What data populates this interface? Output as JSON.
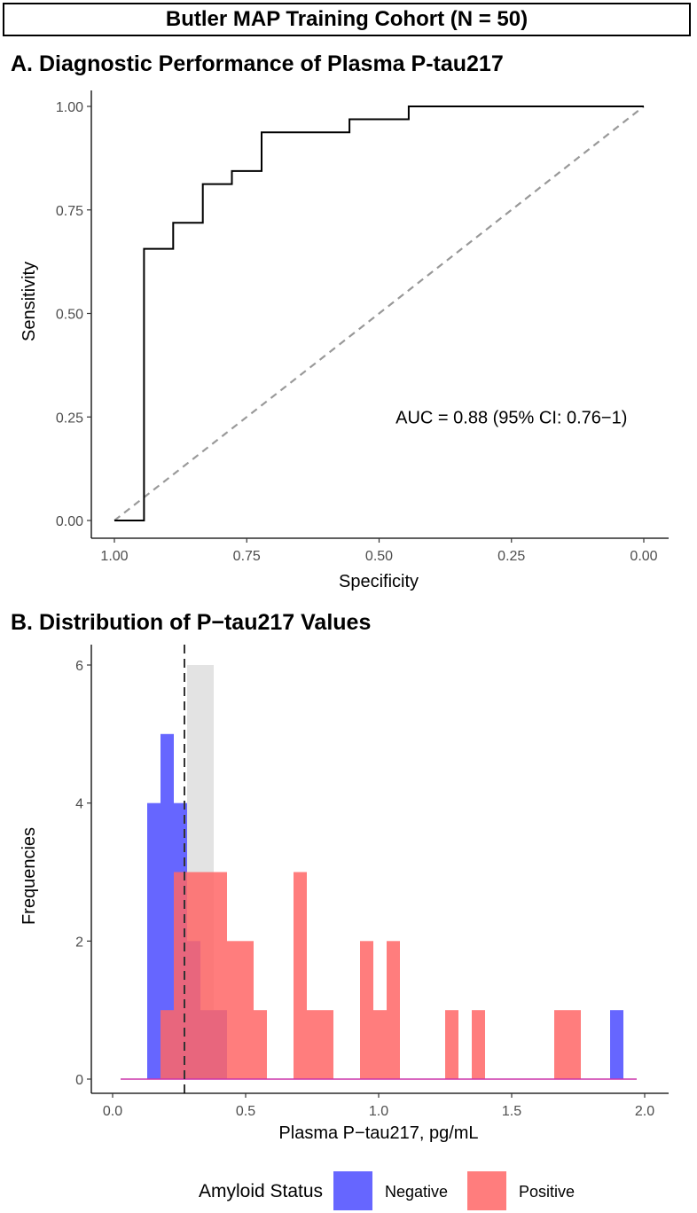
{
  "figure_title": "Butler MAP Training Cohort (N = 50)",
  "colors": {
    "negative": "#6666ff",
    "positive": "#ff6666",
    "overlap_gray": "#d9d9d9",
    "reference": "#999999",
    "roc_line": "#000000"
  },
  "chart_data": [
    {
      "type": "line",
      "panel": "A",
      "title": "A. Diagnostic Performance of Plasma P-tau217",
      "xlabel": "Specificity",
      "ylabel": "Sensitivity",
      "xlim": [
        1.0,
        0.0
      ],
      "x_reversed": true,
      "ylim": [
        0.0,
        1.0
      ],
      "x_ticks": [
        1.0,
        0.75,
        0.5,
        0.25,
        0.0
      ],
      "x_tick_labels": [
        "1.00",
        "0.75",
        "0.50",
        "0.25",
        "0.00"
      ],
      "y_ticks": [
        0.0,
        0.25,
        0.5,
        0.75,
        1.0
      ],
      "y_tick_labels": [
        "0.00",
        "0.25",
        "0.50",
        "0.75",
        "1.00"
      ],
      "grid": false,
      "series": [
        {
          "name": "ROC",
          "style": "step",
          "points": [
            [
              1.0,
              0.0
            ],
            [
              0.944,
              0.0
            ],
            [
              0.944,
              0.656
            ],
            [
              0.889,
              0.656
            ],
            [
              0.889,
              0.719
            ],
            [
              0.833,
              0.719
            ],
            [
              0.833,
              0.8125
            ],
            [
              0.778,
              0.8125
            ],
            [
              0.778,
              0.844
            ],
            [
              0.722,
              0.844
            ],
            [
              0.722,
              0.9375
            ],
            [
              0.556,
              0.9375
            ],
            [
              0.556,
              0.969
            ],
            [
              0.444,
              0.969
            ],
            [
              0.444,
              1.0
            ],
            [
              0.0,
              1.0
            ]
          ]
        },
        {
          "name": "Chance",
          "style": "dashed",
          "points": [
            [
              1.0,
              0.0
            ],
            [
              0.0,
              1.0
            ]
          ]
        }
      ],
      "annotation": "AUC = 0.88 (95% CI: 0.76−1)",
      "annotation_position": [
        0.25,
        0.25
      ]
    },
    {
      "type": "bar",
      "subtype": "histogram",
      "panel": "B",
      "title": "B. Distribution of P−tau217 Values",
      "xlabel": "Plasma P−tau217, pg/mL",
      "ylabel": "Frequencies",
      "xlim": [
        -0.085,
        2.085
      ],
      "ylim": [
        -0.3,
        6.3
      ],
      "x_ticks": [
        0.0,
        0.5,
        1.0,
        1.5,
        2.0
      ],
      "x_tick_labels": [
        "0.0",
        "0.5",
        "1.0",
        "1.5",
        "2.0"
      ],
      "y_ticks": [
        0,
        2,
        4,
        6
      ],
      "y_tick_labels": [
        "0",
        "2",
        "4",
        "6"
      ],
      "grid": false,
      "bin_width": 0.05,
      "baseline_range": [
        0.03,
        1.97
      ],
      "cutoff_line": 0.27,
      "series": [
        {
          "name": "Negative",
          "bins": [
            {
              "x0": 0.13,
              "count": 4
            },
            {
              "x0": 0.18,
              "count": 5
            },
            {
              "x0": 0.23,
              "count": 4
            },
            {
              "x0": 0.28,
              "count": 2
            },
            {
              "x0": 0.33,
              "count": 1
            },
            {
              "x0": 0.38,
              "count": 1
            },
            {
              "x0": 1.87,
              "count": 1
            }
          ]
        },
        {
          "name": "Positive",
          "bins": [
            {
              "x0": 0.18,
              "count": 1
            },
            {
              "x0": 0.23,
              "count": 3
            },
            {
              "x0": 0.28,
              "count": 3
            },
            {
              "x0": 0.33,
              "count": 3
            },
            {
              "x0": 0.38,
              "count": 3
            },
            {
              "x0": 0.43,
              "count": 2
            },
            {
              "x0": 0.48,
              "count": 2
            },
            {
              "x0": 0.53,
              "count": 1
            },
            {
              "x0": 0.68,
              "count": 3
            },
            {
              "x0": 0.73,
              "count": 1
            },
            {
              "x0": 0.78,
              "count": 1
            },
            {
              "x0": 0.93,
              "count": 2
            },
            {
              "x0": 0.98,
              "count": 1
            },
            {
              "x0": 1.03,
              "count": 2
            },
            {
              "x0": 1.25,
              "count": 1
            },
            {
              "x0": 1.35,
              "count": 1
            },
            {
              "x0": 1.66,
              "count": 1
            },
            {
              "x0": 1.71,
              "count": 1
            }
          ]
        },
        {
          "name": "Overlap",
          "bins": [
            {
              "x0": 0.28,
              "count": 6
            },
            {
              "x0": 0.33,
              "count": 6
            }
          ]
        }
      ],
      "legend": {
        "title": "Amyloid Status",
        "entries": [
          "Negative",
          "Positive"
        ],
        "position": "bottom"
      }
    }
  ]
}
